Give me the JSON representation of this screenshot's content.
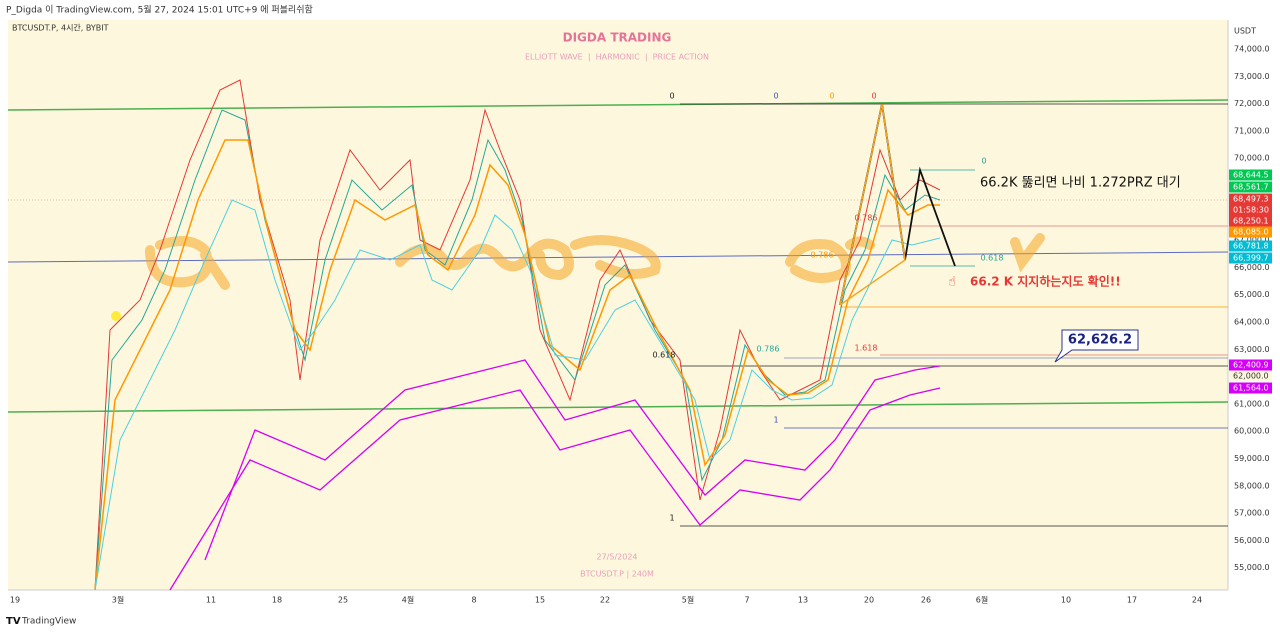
{
  "header": {
    "publish_note": "P_Digda 이 TradingView.com, 5월 27, 2024 15:01 UTC+9 에 퍼블리쉬함",
    "symbol": "BTCUSDT.P, 4시간, BYBIT",
    "currency": "USDT"
  },
  "overlay": {
    "title": "DIGDA TRADING",
    "subtitle": "ELLIOTT WAVE  |  HARMONIC  |  PRICE ACTION",
    "date": "27/5/2024",
    "timeframe": "BTCUSDT.P | 240M"
  },
  "annotations": {
    "note_1": "66.2K 뚫리면 나비 1.272PRZ 대기",
    "note_2": "66.2 K 지지하는지도 확인!!",
    "callout": "62,626.2"
  },
  "fib_labels": [
    "0",
    "0",
    "0",
    "0",
    "0",
    "0.786",
    "0.786",
    "0.618",
    "0.618",
    "0.786",
    "1.618",
    "1",
    "1"
  ],
  "price_axis": [
    "74,000.0",
    "73,000.0",
    "72,000.0",
    "71,000.0",
    "70,000.0",
    "69,000.0",
    "68,000.0",
    "67,000.0",
    "66,000.0",
    "65,000.0",
    "64,000.0",
    "63,000.0",
    "62,000.0",
    "61,000.0",
    "60,000.0",
    "59,000.0",
    "58,000.0",
    "57,000.0",
    "56,000.0",
    "55,000.0"
  ],
  "price_tags": [
    {
      "price": "68,644.5"
    },
    {
      "price": "68,561.7"
    },
    {
      "price": "68,497.3",
      "countdown": "01:58:30"
    },
    {
      "price": "68,250.1"
    },
    {
      "price": "68,085.0"
    },
    {
      "price": "66,781.8"
    },
    {
      "price": "66,399.7"
    },
    {
      "price": "62,400.9"
    },
    {
      "price": "62,000.0"
    },
    {
      "price": "61,564.0"
    }
  ],
  "time_axis": [
    "19",
    "3월",
    "11",
    "18",
    "25",
    "4월",
    "8",
    "15",
    "22",
    "5월",
    "7",
    "13",
    "20",
    "26",
    "6월",
    "10",
    "17",
    "24"
  ],
  "footer": {
    "brand": "TradingView"
  }
}
